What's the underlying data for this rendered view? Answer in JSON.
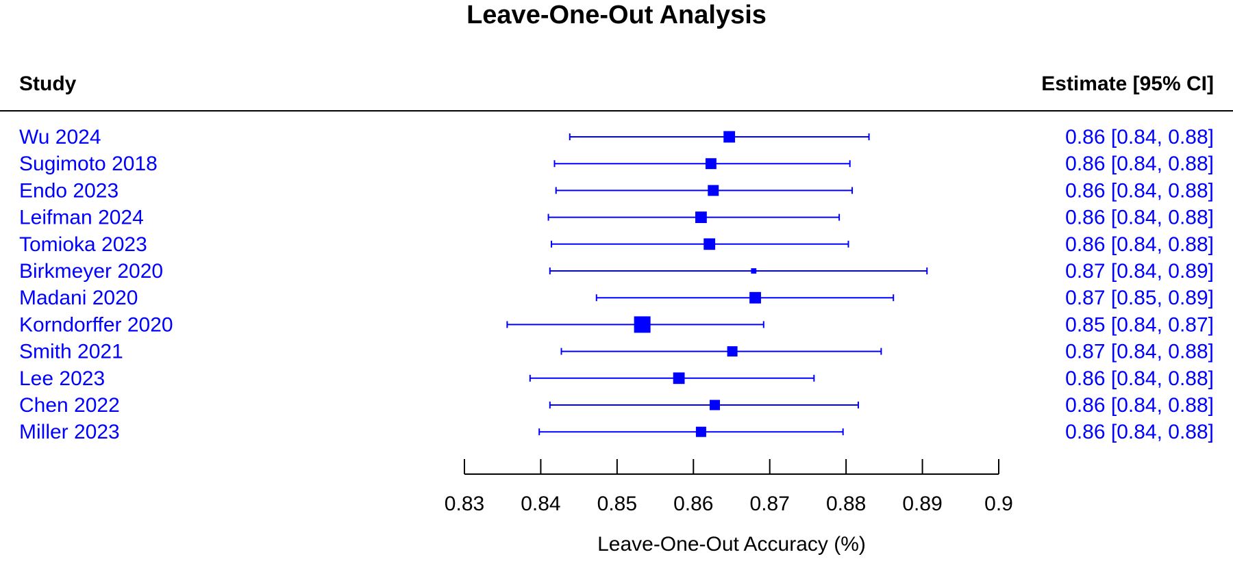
{
  "chart_data": {
    "type": "forest",
    "title": "Leave-One-Out Analysis",
    "study_header": "Study",
    "estimate_header": "Estimate [95% CI]",
    "xlabel": "Leave-One-Out Accuracy (%)",
    "xlim": [
      0.83,
      0.9
    ],
    "ticks": [
      "0.83",
      "0.84",
      "0.85",
      "0.86",
      "0.87",
      "0.88",
      "0.89",
      "0.9"
    ],
    "color": "#0000ff",
    "rows": [
      {
        "study": "Wu 2024",
        "estimate": 0.8647,
        "lower": 0.8438,
        "upper": 0.883,
        "weight": 0.6,
        "label": "0.86 [0.84, 0.88]"
      },
      {
        "study": "Sugimoto 2018",
        "estimate": 0.8623,
        "lower": 0.8418,
        "upper": 0.8805,
        "weight": 0.55,
        "label": "0.86 [0.84, 0.88]"
      },
      {
        "study": "Endo 2023",
        "estimate": 0.8626,
        "lower": 0.842,
        "upper": 0.8808,
        "weight": 0.55,
        "label": "0.86 [0.84, 0.88]"
      },
      {
        "study": "Leifman 2024",
        "estimate": 0.861,
        "lower": 0.841,
        "upper": 0.8791,
        "weight": 0.6,
        "label": "0.86 [0.84, 0.88]"
      },
      {
        "study": "Tomioka 2023",
        "estimate": 0.8621,
        "lower": 0.8414,
        "upper": 0.8803,
        "weight": 0.6,
        "label": "0.86 [0.84, 0.88]"
      },
      {
        "study": "Birkmeyer 2020",
        "estimate": 0.8679,
        "lower": 0.8412,
        "upper": 0.8906,
        "weight": 0.1,
        "label": "0.87 [0.84, 0.89]"
      },
      {
        "study": "Madani 2020",
        "estimate": 0.8681,
        "lower": 0.8473,
        "upper": 0.8862,
        "weight": 0.6,
        "label": "0.87 [0.85, 0.89]"
      },
      {
        "study": "Korndorffer 2020",
        "estimate": 0.8533,
        "lower": 0.8356,
        "upper": 0.8692,
        "weight": 1.0,
        "label": "0.85 [0.84, 0.87]"
      },
      {
        "study": "Smith 2021",
        "estimate": 0.8651,
        "lower": 0.8427,
        "upper": 0.8846,
        "weight": 0.5,
        "label": "0.87 [0.84, 0.88]"
      },
      {
        "study": "Lee 2023",
        "estimate": 0.8581,
        "lower": 0.8386,
        "upper": 0.8758,
        "weight": 0.6,
        "label": "0.86 [0.84, 0.88]"
      },
      {
        "study": "Chen 2022",
        "estimate": 0.8628,
        "lower": 0.8412,
        "upper": 0.8816,
        "weight": 0.5,
        "label": "0.86 [0.84, 0.88]"
      },
      {
        "study": "Miller 2023",
        "estimate": 0.861,
        "lower": 0.8398,
        "upper": 0.8796,
        "weight": 0.5,
        "label": "0.86 [0.84, 0.88]"
      }
    ]
  }
}
